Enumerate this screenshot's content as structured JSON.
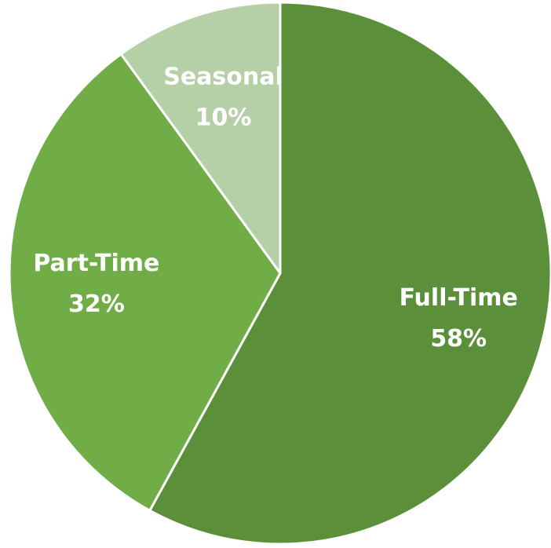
{
  "chart_data": {
    "type": "pie",
    "categories": [
      "Full-Time",
      "Part-Time",
      "Seasonal"
    ],
    "values": [
      58,
      32,
      10
    ],
    "value_labels": [
      "58%",
      "32%",
      "10%"
    ],
    "colors": [
      "#5b8f3a",
      "#70ad47",
      "#b5cfa7"
    ]
  }
}
